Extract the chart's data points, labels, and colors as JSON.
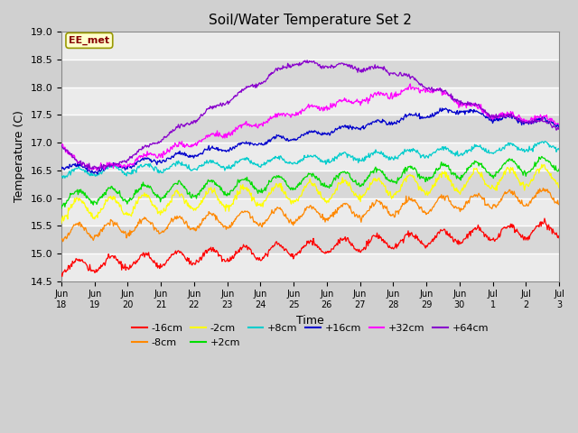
{
  "title": "Soil/Water Temperature Set 2",
  "xlabel": "Time",
  "ylabel": "Temperature (C)",
  "ylim": [
    14.5,
    19.0
  ],
  "annotation": "EE_met",
  "fig_bg": "#c8c8c8",
  "plot_bg": "#e8e8e8",
  "series": [
    {
      "label": "-16cm",
      "color": "#ff0000"
    },
    {
      "label": "-8cm",
      "color": "#ff8800"
    },
    {
      "label": "-2cm",
      "color": "#ffff00"
    },
    {
      "label": "+2cm",
      "color": "#00dd00"
    },
    {
      "label": "+8cm",
      "color": "#00cccc"
    },
    {
      "label": "+16cm",
      "color": "#0000cc"
    },
    {
      "label": "+32cm",
      "color": "#ff00ff"
    },
    {
      "label": "+64cm",
      "color": "#8800cc"
    }
  ],
  "tick_labels": [
    "Jun 18",
    "Jun 19",
    "Jun 20",
    "Jun 21",
    "Jun 22",
    "Jun 23",
    "Jun 24",
    "Jun 25",
    "Jun 26",
    "Jun 27",
    "Jun 28",
    "Jun 29",
    "Jun 30",
    "Jul 1",
    "Jul 2",
    "Jul 3"
  ],
  "n_points": 720,
  "n_days": 15,
  "band_colors": [
    "#ebebeb",
    "#d8d8d8"
  ]
}
